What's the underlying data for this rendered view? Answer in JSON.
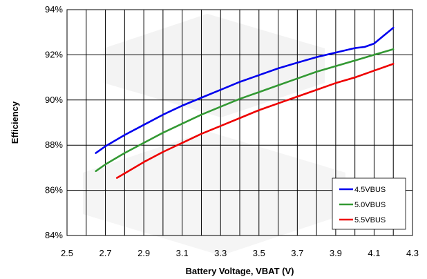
{
  "chart_data": {
    "type": "line",
    "xlabel": "Battery Voltage, VBAT (V)",
    "ylabel": "Efficiency",
    "xlim": [
      2.5,
      4.3
    ],
    "ylim": [
      84,
      94
    ],
    "x_ticks": [
      2.5,
      2.6,
      2.7,
      2.8,
      2.9,
      3.0,
      3.1,
      3.2,
      3.3,
      3.4,
      3.5,
      3.6,
      3.7,
      3.8,
      3.9,
      4.0,
      4.1,
      4.2,
      4.3
    ],
    "x_tick_labels": [
      "2.5",
      "2.7",
      "2.9",
      "3.1",
      "3.3",
      "3.5",
      "3.7",
      "3.9",
      "4.1",
      "4.3"
    ],
    "y_ticks": [
      84,
      86,
      88,
      90,
      92,
      94
    ],
    "y_tick_labels": [
      "84%",
      "86%",
      "88%",
      "90%",
      "92%",
      "94%"
    ],
    "grid": true,
    "legend_position": "bottom-right",
    "series": [
      {
        "name": "4.5VBUS",
        "color": "#0000ee",
        "x": [
          2.65,
          2.7,
          2.8,
          2.9,
          3.0,
          3.1,
          3.2,
          3.3,
          3.4,
          3.5,
          3.6,
          3.7,
          3.8,
          3.9,
          4.0,
          4.05,
          4.1,
          4.15,
          4.2
        ],
        "y": [
          87.65,
          87.95,
          88.45,
          88.9,
          89.35,
          89.75,
          90.1,
          90.45,
          90.8,
          91.1,
          91.4,
          91.65,
          91.9,
          92.1,
          92.3,
          92.35,
          92.5,
          92.85,
          93.2
        ]
      },
      {
        "name": "5.0VBUS",
        "color": "#339933",
        "x": [
          2.65,
          2.7,
          2.8,
          2.9,
          3.0,
          3.1,
          3.2,
          3.3,
          3.4,
          3.5,
          3.6,
          3.7,
          3.8,
          3.9,
          4.0,
          4.1,
          4.2
        ],
        "y": [
          86.85,
          87.15,
          87.65,
          88.1,
          88.55,
          88.95,
          89.35,
          89.7,
          90.05,
          90.35,
          90.65,
          90.95,
          91.25,
          91.5,
          91.75,
          92.0,
          92.25
        ]
      },
      {
        "name": "5.5VBUS",
        "color": "#ee0000",
        "x": [
          2.76,
          2.8,
          2.9,
          3.0,
          3.1,
          3.2,
          3.3,
          3.4,
          3.5,
          3.6,
          3.7,
          3.8,
          3.9,
          4.0,
          4.1,
          4.2
        ],
        "y": [
          86.55,
          86.75,
          87.25,
          87.7,
          88.1,
          88.5,
          88.85,
          89.2,
          89.55,
          89.85,
          90.15,
          90.45,
          90.75,
          91.0,
          91.3,
          91.6
        ]
      }
    ]
  }
}
